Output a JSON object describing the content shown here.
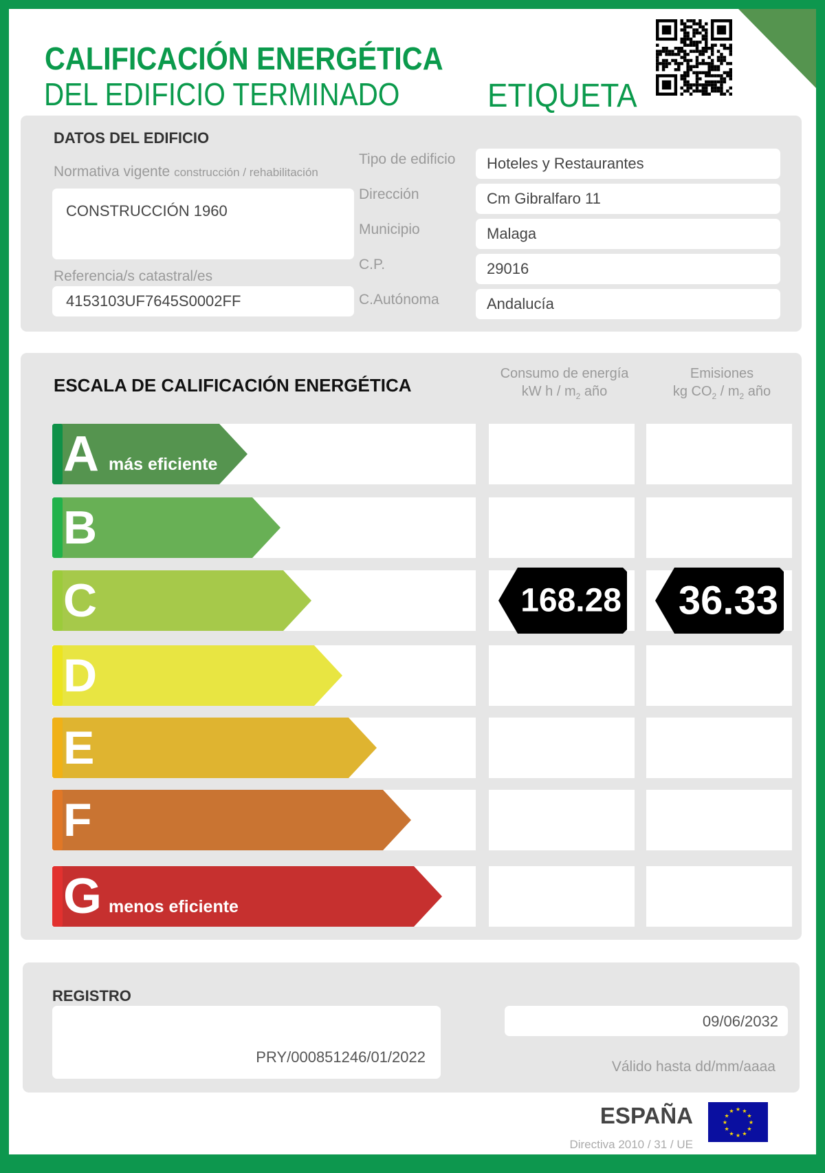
{
  "header": {
    "title_line1": "CALIFICACIÓN ENERGÉTICA",
    "title_line2": "DEL EDIFICIO TERMINADO",
    "label": "ETIQUETA",
    "qr_icon": "qr-code-icon",
    "accent": "#0b9a4c"
  },
  "datos": {
    "title": "DATOS DEL EDIFICIO",
    "normativa_label": "Normativa vigente",
    "normativa_sublabel": "construcción / rehabilitación",
    "normativa_value": "CONSTRUCCIÓN  1960",
    "referencia_label": "Referencia/s catastral/es",
    "referencia_value": "4153103UF7645S0002FF",
    "fields": [
      {
        "label": "Tipo de edificio",
        "value": "Hoteles y Restaurantes"
      },
      {
        "label": "Dirección",
        "value": "Cm Gibralfaro 11"
      },
      {
        "label": "Municipio",
        "value": "Malaga"
      },
      {
        "label": "C.P.",
        "value": "29016"
      },
      {
        "label": "C.Autónoma",
        "value": "Andalucía"
      }
    ]
  },
  "escala": {
    "title": "ESCALA DE CALIFICACIÓN ENERGÉTICA",
    "col_consumo": {
      "line1": "Consumo de energía",
      "unit_a": "kW h / m",
      "unit_sub": "2",
      "unit_b": " año"
    },
    "col_emisiones": {
      "line1": "Emisiones",
      "unit_a": "kg CO",
      "unit_sub1": "2",
      "unit_mid": " / m",
      "unit_sub2": "2",
      "unit_b": " año"
    },
    "classes": [
      {
        "letter": "A",
        "note": "más eficiente",
        "color": "#55944f",
        "stripe": "#0e9148"
      },
      {
        "letter": "B",
        "note": "",
        "color": "#68b055",
        "stripe": "#21b24b"
      },
      {
        "letter": "C",
        "note": "",
        "color": "#a6c94a",
        "stripe": "#9ccb3b"
      },
      {
        "letter": "D",
        "note": "",
        "color": "#e8e542",
        "stripe": "#ece41f"
      },
      {
        "letter": "E",
        "note": "",
        "color": "#dfb430",
        "stripe": "#f0b117"
      },
      {
        "letter": "F",
        "note": "",
        "color": "#c97432",
        "stripe": "#e07726"
      },
      {
        "letter": "G",
        "note": "menos eficiente",
        "color": "#c6302f",
        "stripe": "#e2312f"
      }
    ],
    "rating_class": "C",
    "consumo_value": "168.28",
    "emisiones_value": "36.33"
  },
  "registro": {
    "title": "REGISTRO",
    "number": "PRY/000851246/01/2022",
    "valid_date": "09/06/2032",
    "valid_label": "Válido hasta dd/mm/aaaa"
  },
  "footer": {
    "country": "ESPAÑA",
    "directive": "Directiva 2010 / 31 / UE",
    "flag_icon": "eu-flag-icon"
  }
}
